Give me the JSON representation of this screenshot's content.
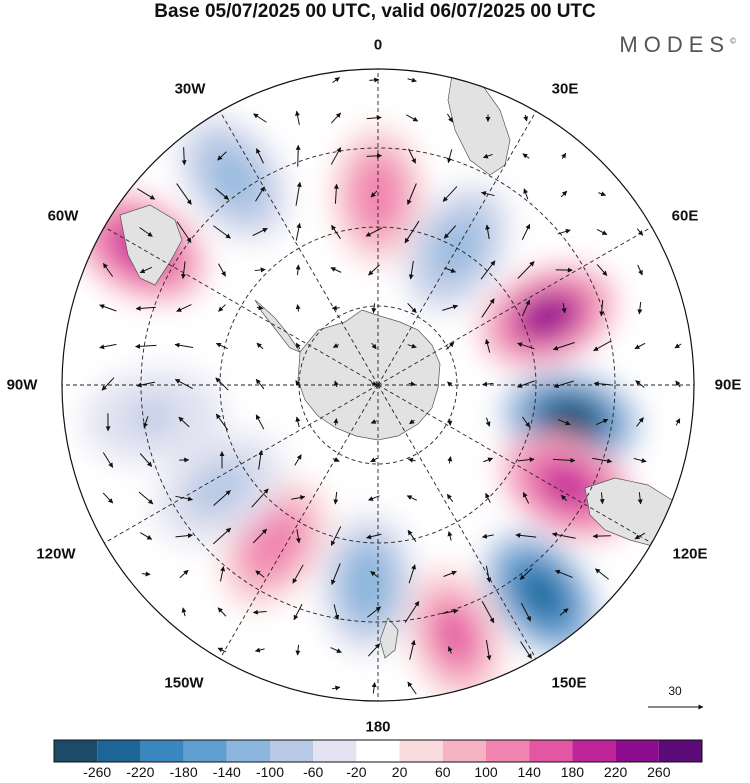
{
  "title": "Base 05/07/2025 00 UTC, valid 06/07/2025 00 UTC",
  "brand": "MODES",
  "brand_mark": "©",
  "lon_labels": {
    "l0": "0",
    "l30e": "30E",
    "l60e": "60E",
    "l90e": "90E",
    "l120e": "120E",
    "l150e": "150E",
    "l180": "180",
    "l150w": "150W",
    "l120w": "120W",
    "l90w": "90W",
    "l60w": "60W",
    "l30w": "30W"
  },
  "reference_vector": "30",
  "colorbar": {
    "colors": [
      "#1d4a67",
      "#1c6596",
      "#3a87c0",
      "#619fd0",
      "#8cb6de",
      "#b7c9e5",
      "#e3e3f1",
      "#ffffff",
      "#fbdcde",
      "#f6b3c4",
      "#f184b0",
      "#e256a4",
      "#c0249a",
      "#8b0c8c",
      "#5b0a78"
    ],
    "ticks": [
      "-260",
      "-220",
      "-180",
      "-140",
      "-100",
      "-60",
      "-20",
      "20",
      "60",
      "100",
      "140",
      "180",
      "220",
      "260"
    ]
  },
  "anomaly_centers": [
    {
      "bearing": 100,
      "r": 0.62,
      "value": -260,
      "sign": "neg"
    },
    {
      "bearing": 68,
      "r": 0.58,
      "value": 230,
      "sign": "pos"
    },
    {
      "bearing": 118,
      "r": 0.68,
      "value": 200,
      "sign": "pos"
    },
    {
      "bearing": 142,
      "r": 0.84,
      "value": -250,
      "sign": "neg"
    },
    {
      "bearing": 163,
      "r": 0.83,
      "value": 150,
      "sign": "pos"
    },
    {
      "bearing": 183,
      "r": 0.63,
      "value": -120,
      "sign": "neg"
    },
    {
      "bearing": 213,
      "r": 0.6,
      "value": 130,
      "sign": "pos"
    },
    {
      "bearing": 237,
      "r": 0.6,
      "value": -90,
      "sign": "neg"
    },
    {
      "bearing": 262,
      "r": 0.72,
      "value": -60,
      "sign": "neg"
    },
    {
      "bearing": 300,
      "r": 0.87,
      "value": 200,
      "sign": "pos"
    },
    {
      "bearing": 325,
      "r": 0.8,
      "value": -110,
      "sign": "neg"
    },
    {
      "bearing": 0,
      "r": 0.6,
      "value": 130,
      "sign": "pos"
    },
    {
      "bearing": 30,
      "r": 0.5,
      "value": -110,
      "sign": "neg"
    }
  ]
}
